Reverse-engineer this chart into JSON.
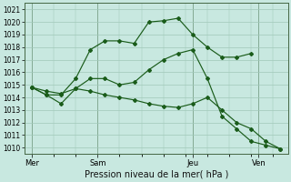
{
  "xlabel": "Pression niveau de la mer( hPa )",
  "ylim": [
    1009.5,
    1021.5
  ],
  "bg_color": "#c8e8e0",
  "grid_color": "#a0c8b8",
  "line_color": "#1a5c1a",
  "xtick_labels": [
    "Mer",
    "Sam",
    "Jeu",
    "Ven"
  ],
  "vline_color": "#446644",
  "line1_x": [
    0,
    1,
    2,
    3,
    4,
    5,
    6,
    7,
    8,
    9,
    10,
    11,
    12,
    13,
    14,
    15
  ],
  "line1_y": [
    1014.8,
    1014.2,
    1014.2,
    1015.5,
    1017.8,
    1018.5,
    1018.5,
    1018.3,
    1020.0,
    1020.1,
    1020.3,
    1019.0,
    1018.0,
    1017.2,
    1017.2,
    1017.5
  ],
  "line2_x": [
    0,
    1,
    2,
    3,
    4,
    5,
    6,
    7,
    8,
    9,
    10,
    11,
    12,
    13,
    14,
    15,
    16,
    17
  ],
  "line2_y": [
    1014.8,
    1014.2,
    1013.5,
    1014.7,
    1015.5,
    1015.5,
    1015.0,
    1015.2,
    1016.2,
    1017.0,
    1017.5,
    1017.8,
    1015.5,
    1012.5,
    1011.5,
    1010.5,
    1010.2,
    1009.9
  ],
  "line3_x": [
    0,
    1,
    2,
    3,
    4,
    5,
    6,
    7,
    8,
    9,
    10,
    11,
    12,
    13,
    14,
    15,
    16,
    17
  ],
  "line3_y": [
    1014.8,
    1014.5,
    1014.3,
    1014.7,
    1014.5,
    1014.2,
    1014.0,
    1013.8,
    1013.5,
    1013.3,
    1013.2,
    1013.5,
    1014.0,
    1013.0,
    1012.0,
    1011.5,
    1010.5,
    1009.9
  ],
  "xlim": [
    -0.5,
    17.5
  ],
  "vline_x": [
    0,
    4.5,
    11,
    15.5
  ]
}
